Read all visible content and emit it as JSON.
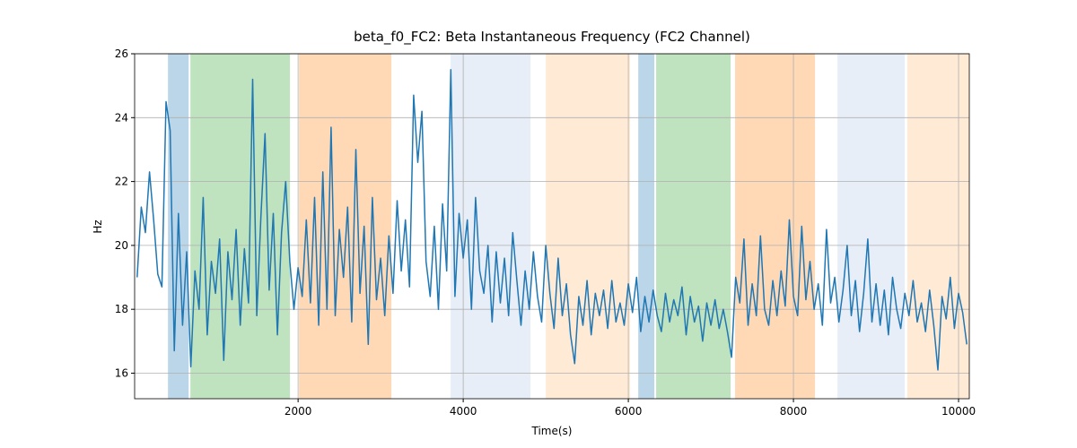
{
  "chart_data": {
    "type": "line",
    "title": "beta_f0_FC2: Beta Instantaneous Frequency (FC2 Channel)",
    "xlabel": "Time(s)",
    "ylabel": "Hz",
    "xlim": [
      20,
      10130
    ],
    "ylim": [
      15.2,
      26
    ],
    "xticks": [
      2000,
      4000,
      6000,
      8000,
      10000
    ],
    "yticks": [
      16,
      18,
      20,
      22,
      24,
      26
    ],
    "grid": true,
    "color": "#1f77b4",
    "span_alpha": 0.3,
    "spans": [
      {
        "start": 424,
        "end": 674,
        "color": "#1f77b4"
      },
      {
        "start": 696,
        "end": 1902,
        "color": "#2ca02c"
      },
      {
        "start": 2011,
        "end": 3130,
        "color": "#ff7f0e"
      },
      {
        "start": 3848,
        "end": 4815,
        "color": "#aec7e8"
      },
      {
        "start": 5000,
        "end": 6022,
        "color": "#ffbb78"
      },
      {
        "start": 6120,
        "end": 6315,
        "color": "#1f77b4"
      },
      {
        "start": 6337,
        "end": 7239,
        "color": "#2ca02c"
      },
      {
        "start": 7293,
        "end": 8261,
        "color": "#ff7f0e"
      },
      {
        "start": 8533,
        "end": 9348,
        "color": "#aec7e8"
      },
      {
        "start": 9380,
        "end": 10130,
        "color": "#ffbb78"
      }
    ],
    "x": [
      50,
      100,
      150,
      200,
      250,
      300,
      350,
      400,
      450,
      500,
      550,
      600,
      650,
      700,
      750,
      800,
      850,
      900,
      950,
      1000,
      1050,
      1100,
      1150,
      1200,
      1250,
      1300,
      1350,
      1400,
      1450,
      1500,
      1550,
      1600,
      1650,
      1700,
      1750,
      1800,
      1850,
      1900,
      1950,
      2000,
      2050,
      2100,
      2150,
      2200,
      2250,
      2300,
      2350,
      2400,
      2450,
      2500,
      2550,
      2600,
      2650,
      2700,
      2750,
      2800,
      2850,
      2900,
      2950,
      3000,
      3050,
      3100,
      3150,
      3200,
      3250,
      3300,
      3350,
      3400,
      3450,
      3500,
      3550,
      3600,
      3650,
      3700,
      3750,
      3800,
      3850,
      3900,
      3950,
      4000,
      4050,
      4100,
      4150,
      4200,
      4250,
      4300,
      4350,
      4400,
      4450,
      4500,
      4550,
      4600,
      4650,
      4700,
      4750,
      4800,
      4850,
      4900,
      4950,
      5000,
      5050,
      5100,
      5150,
      5200,
      5250,
      5300,
      5350,
      5400,
      5450,
      5500,
      5550,
      5600,
      5650,
      5700,
      5750,
      5800,
      5850,
      5900,
      5950,
      6000,
      6050,
      6100,
      6150,
      6200,
      6250,
      6300,
      6350,
      6400,
      6450,
      6500,
      6550,
      6600,
      6650,
      6700,
      6750,
      6800,
      6850,
      6900,
      6950,
      7000,
      7050,
      7100,
      7150,
      7200,
      7250,
      7300,
      7350,
      7400,
      7450,
      7500,
      7550,
      7600,
      7650,
      7700,
      7750,
      7800,
      7850,
      7900,
      7950,
      8000,
      8050,
      8100,
      8150,
      8200,
      8250,
      8300,
      8350,
      8400,
      8450,
      8500,
      8550,
      8600,
      8650,
      8700,
      8750,
      8800,
      8850,
      8900,
      8950,
      9000,
      9050,
      9100,
      9150,
      9200,
      9250,
      9300,
      9350,
      9400,
      9450,
      9500,
      9550,
      9600,
      9650,
      9700,
      9750,
      9800,
      9850,
      9900,
      9950,
      10000,
      10050,
      10100
    ],
    "values": [
      19.0,
      21.2,
      20.4,
      22.3,
      20.8,
      19.1,
      18.7,
      24.5,
      23.6,
      16.7,
      21.0,
      17.5,
      19.8,
      16.2,
      19.2,
      18.0,
      21.5,
      17.2,
      19.5,
      18.5,
      20.2,
      16.4,
      19.8,
      18.3,
      20.5,
      17.5,
      19.9,
      18.2,
      25.2,
      17.8,
      20.9,
      23.5,
      18.6,
      21.0,
      17.2,
      20.4,
      22.0,
      19.5,
      18.0,
      19.3,
      18.4,
      20.8,
      18.2,
      21.5,
      17.5,
      22.3,
      18.0,
      23.7,
      17.8,
      20.5,
      19.0,
      21.2,
      17.6,
      23.0,
      18.5,
      20.6,
      16.9,
      21.5,
      18.3,
      19.6,
      17.8,
      20.3,
      18.5,
      21.4,
      19.2,
      20.8,
      18.7,
      24.7,
      22.6,
      24.2,
      19.5,
      18.4,
      20.6,
      18.0,
      21.3,
      19.2,
      25.5,
      18.4,
      21.0,
      19.6,
      20.8,
      18.0,
      21.5,
      19.2,
      18.5,
      20.0,
      17.6,
      19.8,
      18.2,
      19.6,
      17.8,
      20.4,
      18.9,
      17.5,
      19.2,
      18.0,
      19.8,
      18.4,
      17.6,
      20.0,
      18.5,
      17.4,
      19.6,
      17.8,
      18.8,
      17.2,
      16.3,
      18.4,
      17.5,
      18.9,
      17.2,
      18.5,
      17.8,
      18.6,
      17.4,
      18.9,
      17.6,
      18.2,
      17.5,
      18.8,
      17.9,
      19.0,
      17.3,
      18.4,
      17.6,
      18.6,
      17.8,
      17.3,
      18.5,
      17.6,
      18.3,
      17.8,
      18.7,
      17.2,
      18.4,
      17.6,
      18.1,
      17.0,
      18.2,
      17.5,
      18.3,
      17.4,
      18.0,
      17.3,
      16.5,
      19.0,
      18.2,
      20.2,
      17.5,
      18.8,
      17.8,
      20.3,
      18.0,
      17.5,
      18.9,
      17.8,
      19.2,
      18.1,
      20.8,
      18.4,
      17.8,
      20.6,
      18.3,
      19.5,
      18.0,
      18.8,
      17.5,
      20.5,
      18.2,
      19.0,
      17.6,
      18.6,
      20.0,
      17.8,
      18.9,
      17.3,
      18.5,
      20.2,
      17.6,
      18.8,
      17.5,
      18.6,
      17.2,
      19.0,
      18.0,
      17.4,
      18.5,
      17.8,
      18.9,
      17.6,
      18.2,
      17.3,
      18.6,
      17.5,
      16.1,
      18.4,
      17.7,
      19.0,
      17.4,
      18.5,
      17.9,
      16.9
    ]
  }
}
